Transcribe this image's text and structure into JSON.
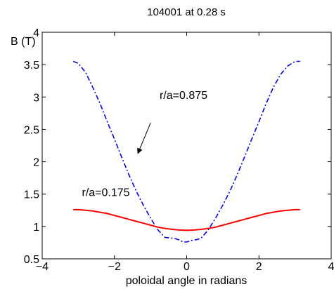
{
  "chart_data": {
    "type": "line",
    "title": "104001 at 0.28 s",
    "xlabel": "poloidal angle in radians",
    "ylabel": "B (T)",
    "xlim": [
      -4,
      4
    ],
    "ylim": [
      0.5,
      4
    ],
    "xticks": [
      -4,
      -2,
      0,
      2,
      4
    ],
    "xtick_labels": [
      "−4",
      "−2",
      "0",
      "2",
      "4"
    ],
    "yticks": [
      0.5,
      1,
      1.5,
      2,
      2.5,
      3,
      3.5,
      4
    ],
    "ytick_labels": [
      "0.5",
      "1",
      "1.5",
      "2",
      "2.5",
      "3",
      "3.5",
      "4"
    ],
    "grid": false,
    "series": [
      {
        "name": "r/a=0.875",
        "color": "#0000ff",
        "style": "dash-dot",
        "x": [
          -3.14,
          -3.0,
          -2.8,
          -2.6,
          -2.4,
          -2.2,
          -2.0,
          -1.8,
          -1.6,
          -1.4,
          -1.2,
          -1.0,
          -0.8,
          -0.6,
          -0.4,
          -0.3,
          -0.2,
          -0.1,
          0.0,
          0.1,
          0.2,
          0.3,
          0.4,
          0.6,
          0.8,
          1.0,
          1.2,
          1.4,
          1.6,
          1.8,
          2.0,
          2.2,
          2.4,
          2.6,
          2.8,
          3.0,
          3.14
        ],
        "y": [
          3.55,
          3.52,
          3.38,
          3.15,
          2.9,
          2.62,
          2.35,
          2.07,
          1.8,
          1.55,
          1.33,
          1.13,
          0.95,
          0.83,
          0.82,
          0.81,
          0.79,
          0.76,
          0.76,
          0.78,
          0.79,
          0.8,
          0.82,
          0.95,
          1.13,
          1.33,
          1.55,
          1.8,
          2.07,
          2.35,
          2.62,
          2.9,
          3.15,
          3.35,
          3.48,
          3.55,
          3.55
        ]
      },
      {
        "name": "r/a=0.175",
        "color": "#ff0000",
        "style": "solid",
        "x": [
          -3.14,
          -3.0,
          -2.8,
          -2.6,
          -2.4,
          -2.2,
          -2.0,
          -1.8,
          -1.6,
          -1.4,
          -1.2,
          -1.0,
          -0.8,
          -0.6,
          -0.4,
          -0.2,
          0.0,
          0.2,
          0.4,
          0.6,
          0.8,
          1.0,
          1.2,
          1.4,
          1.6,
          1.8,
          2.0,
          2.2,
          2.4,
          2.6,
          2.8,
          3.0,
          3.14
        ],
        "y": [
          1.26,
          1.26,
          1.25,
          1.24,
          1.22,
          1.2,
          1.17,
          1.14,
          1.11,
          1.08,
          1.05,
          1.02,
          0.99,
          0.97,
          0.955,
          0.945,
          0.94,
          0.945,
          0.955,
          0.97,
          0.99,
          1.02,
          1.05,
          1.08,
          1.11,
          1.14,
          1.17,
          1.2,
          1.22,
          1.24,
          1.25,
          1.26,
          1.26
        ]
      }
    ],
    "annotations": [
      {
        "text": "r/a=0.875",
        "label_at": [
          -0.75,
          2.97
        ],
        "arrow_from": [
          -1.0,
          2.6
        ],
        "arrow_to": [
          -1.35,
          2.13
        ]
      },
      {
        "text": "r/a=0.175",
        "label_at": [
          -2.9,
          1.47
        ]
      }
    ]
  }
}
